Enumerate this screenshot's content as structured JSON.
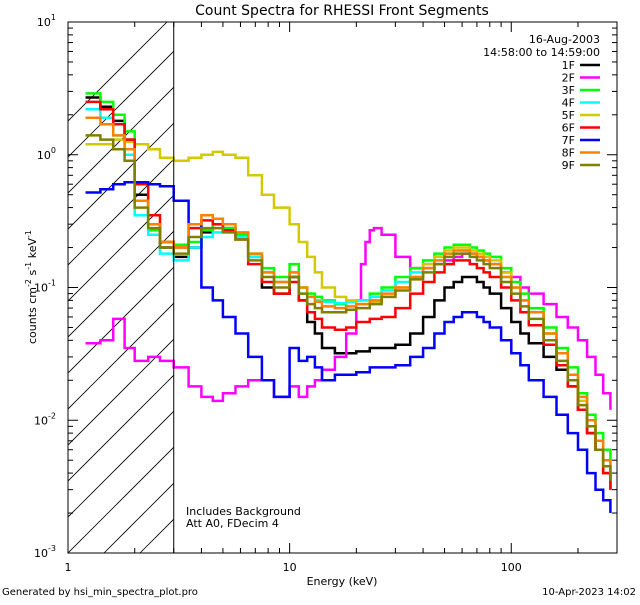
{
  "chart_data": {
    "type": "line",
    "title": "Count Spectra for RHESSI Front Segments",
    "xlabel": "Energy (keV)",
    "ylabel_parts": [
      "counts cm",
      "-2",
      " s",
      "-1",
      " keV",
      "-1"
    ],
    "xscale": "log",
    "yscale": "log",
    "xlim": [
      1,
      300
    ],
    "ylim": [
      0.001,
      10
    ],
    "x_ticks": [
      {
        "value": 1,
        "label": "1"
      },
      {
        "value": 10,
        "label": "10"
      },
      {
        "value": 100,
        "label": "100"
      }
    ],
    "y_ticks": [
      {
        "value": 0.001,
        "base": "10",
        "exp": "-3"
      },
      {
        "value": 0.01,
        "base": "10",
        "exp": "-2"
      },
      {
        "value": 0.1,
        "base": "10",
        "exp": "-1"
      },
      {
        "value": 1,
        "base": "10",
        "exp": "0"
      },
      {
        "value": 10,
        "base": "10",
        "exp": "1"
      }
    ],
    "date": "16-Aug-2003",
    "time_range": "14:58:00 to 14:59:00",
    "hatched_region_x": [
      1,
      3
    ],
    "annotation_lines": [
      "Includes Background",
      "Att A0, FDecim 4"
    ],
    "legend_position": "top-right",
    "series": [
      {
        "name": "1F",
        "color": "#000000",
        "x": [
          1.2,
          1.4,
          1.6,
          1.8,
          2.0,
          2.3,
          2.6,
          3.0,
          3.5,
          4.0,
          4.5,
          5.0,
          5.7,
          6.5,
          7.5,
          8.5,
          10,
          11,
          12,
          13,
          14,
          16,
          18,
          20,
          23,
          26,
          30,
          35,
          40,
          45,
          50,
          55,
          60,
          65,
          70,
          75,
          80,
          90,
          100,
          110,
          120,
          140,
          160,
          180,
          200,
          220,
          240,
          260,
          280
        ],
        "y": [
          2.7,
          2.3,
          1.8,
          1.3,
          0.5,
          0.3,
          0.2,
          0.17,
          0.2,
          0.26,
          0.3,
          0.28,
          0.25,
          0.17,
          0.1,
          0.09,
          0.12,
          0.08,
          0.055,
          0.045,
          0.035,
          0.032,
          0.032,
          0.033,
          0.035,
          0.035,
          0.037,
          0.045,
          0.06,
          0.08,
          0.1,
          0.11,
          0.12,
          0.12,
          0.11,
          0.1,
          0.09,
          0.07,
          0.055,
          0.045,
          0.038,
          0.03,
          0.024,
          0.018,
          0.012,
          0.008,
          0.006,
          0.004,
          0.003
        ]
      },
      {
        "name": "2F",
        "color": "#ff00ff",
        "x": [
          1.2,
          1.4,
          1.6,
          1.8,
          2.0,
          2.3,
          2.6,
          3.0,
          3.5,
          4.0,
          4.5,
          5.0,
          5.7,
          6.5,
          7.5,
          8.5,
          10,
          11,
          12,
          13,
          14,
          16,
          18,
          20,
          21,
          22,
          23,
          24,
          26,
          30,
          35,
          40,
          45,
          50,
          55,
          60,
          65,
          70,
          75,
          80,
          90,
          100,
          110,
          120,
          140,
          160,
          180,
          200,
          220,
          240,
          260,
          280
        ],
        "y": [
          0.038,
          0.04,
          0.058,
          0.035,
          0.028,
          0.03,
          0.028,
          0.025,
          0.018,
          0.015,
          0.014,
          0.016,
          0.018,
          0.02,
          0.02,
          0.015,
          0.018,
          0.015,
          0.018,
          0.02,
          0.024,
          0.03,
          0.045,
          0.08,
          0.15,
          0.22,
          0.27,
          0.28,
          0.25,
          0.17,
          0.14,
          0.14,
          0.15,
          0.16,
          0.17,
          0.18,
          0.18,
          0.17,
          0.16,
          0.15,
          0.13,
          0.12,
          0.1,
          0.09,
          0.075,
          0.06,
          0.05,
          0.04,
          0.03,
          0.022,
          0.016,
          0.012
        ]
      },
      {
        "name": "3F",
        "color": "#00ff00",
        "x": [
          1.2,
          1.4,
          1.6,
          1.8,
          2.0,
          2.3,
          2.6,
          3.0,
          3.5,
          4.0,
          4.5,
          5.0,
          5.7,
          6.5,
          7.5,
          8.5,
          10,
          11,
          12,
          13,
          14,
          16,
          18,
          20,
          23,
          26,
          30,
          35,
          40,
          45,
          50,
          55,
          60,
          65,
          70,
          75,
          80,
          90,
          100,
          110,
          120,
          140,
          160,
          180,
          200,
          220,
          240,
          260,
          280
        ],
        "y": [
          2.9,
          2.5,
          2.0,
          1.5,
          0.45,
          0.27,
          0.22,
          0.21,
          0.22,
          0.27,
          0.3,
          0.28,
          0.25,
          0.18,
          0.14,
          0.12,
          0.15,
          0.1,
          0.09,
          0.085,
          0.08,
          0.075,
          0.078,
          0.08,
          0.09,
          0.1,
          0.12,
          0.14,
          0.16,
          0.18,
          0.2,
          0.21,
          0.21,
          0.2,
          0.19,
          0.18,
          0.17,
          0.14,
          0.11,
          0.09,
          0.07,
          0.05,
          0.035,
          0.025,
          0.016,
          0.011,
          0.008,
          0.006,
          0.005
        ]
      },
      {
        "name": "4F",
        "color": "#00ffff",
        "x": [
          1.2,
          1.4,
          1.6,
          1.8,
          2.0,
          2.3,
          2.6,
          3.0,
          3.5,
          4.0,
          4.5,
          5.0,
          5.7,
          6.5,
          7.5,
          8.5,
          10,
          11,
          12,
          13,
          14,
          16,
          18,
          20,
          23,
          26,
          30,
          35,
          40,
          45,
          50,
          55,
          60,
          65,
          70,
          75,
          80,
          90,
          100,
          110,
          120,
          140,
          160,
          180,
          200,
          220,
          240,
          260,
          280
        ],
        "y": [
          2.2,
          1.9,
          1.4,
          1.0,
          0.35,
          0.25,
          0.18,
          0.16,
          0.2,
          0.24,
          0.26,
          0.26,
          0.24,
          0.17,
          0.13,
          0.11,
          0.13,
          0.09,
          0.085,
          0.08,
          0.078,
          0.076,
          0.078,
          0.08,
          0.085,
          0.095,
          0.11,
          0.13,
          0.15,
          0.17,
          0.18,
          0.19,
          0.19,
          0.18,
          0.17,
          0.16,
          0.15,
          0.12,
          0.1,
          0.08,
          0.065,
          0.045,
          0.032,
          0.022,
          0.015,
          0.01,
          0.007,
          0.005,
          0.004
        ]
      },
      {
        "name": "5F",
        "color": "#d4c800",
        "x": [
          1.2,
          1.4,
          1.6,
          1.8,
          2.0,
          2.3,
          2.6,
          3.0,
          3.5,
          4.0,
          4.5,
          5.0,
          5.7,
          6.5,
          7.5,
          8.5,
          10,
          11,
          12,
          13,
          14,
          16,
          18,
          20,
          23,
          26,
          30,
          35,
          40,
          45,
          50,
          55,
          60,
          65,
          70,
          75,
          80,
          90,
          100,
          110,
          120,
          140,
          160,
          180,
          200,
          220,
          240,
          260,
          280
        ],
        "y": [
          1.2,
          1.2,
          1.3,
          1.25,
          1.2,
          1.1,
          0.95,
          0.9,
          0.95,
          1.0,
          1.05,
          1.0,
          0.95,
          0.7,
          0.5,
          0.4,
          0.3,
          0.22,
          0.17,
          0.13,
          0.1,
          0.085,
          0.08,
          0.075,
          0.078,
          0.085,
          0.1,
          0.12,
          0.15,
          0.17,
          0.19,
          0.2,
          0.2,
          0.19,
          0.18,
          0.17,
          0.16,
          0.13,
          0.1,
          0.08,
          0.065,
          0.045,
          0.032,
          0.022,
          0.014,
          0.009,
          0.006,
          0.004,
          0.003
        ]
      },
      {
        "name": "6F",
        "color": "#ff0000",
        "x": [
          1.2,
          1.4,
          1.6,
          1.8,
          2.0,
          2.3,
          2.6,
          3.0,
          3.5,
          4.0,
          4.5,
          5.0,
          5.7,
          6.5,
          7.5,
          8.5,
          10,
          11,
          12,
          13,
          14,
          16,
          18,
          20,
          23,
          26,
          30,
          35,
          40,
          45,
          50,
          55,
          60,
          65,
          70,
          75,
          80,
          90,
          100,
          110,
          120,
          140,
          160,
          180,
          200,
          220,
          240,
          260,
          280
        ],
        "y": [
          2.5,
          2.2,
          1.7,
          1.3,
          0.6,
          0.35,
          0.22,
          0.2,
          0.28,
          0.32,
          0.3,
          0.27,
          0.23,
          0.15,
          0.11,
          0.09,
          0.11,
          0.08,
          0.065,
          0.058,
          0.05,
          0.048,
          0.05,
          0.055,
          0.058,
          0.06,
          0.07,
          0.09,
          0.11,
          0.13,
          0.15,
          0.16,
          0.16,
          0.15,
          0.14,
          0.13,
          0.12,
          0.1,
          0.08,
          0.065,
          0.052,
          0.037,
          0.026,
          0.018,
          0.012,
          0.008,
          0.006,
          0.004,
          0.003
        ]
      },
      {
        "name": "7F",
        "color": "#0000ff",
        "x": [
          1.2,
          1.4,
          1.6,
          1.8,
          2.0,
          2.3,
          2.6,
          3.0,
          3.5,
          4.0,
          4.5,
          5.0,
          5.7,
          6.5,
          7.5,
          8.5,
          10,
          11,
          12,
          13,
          14,
          16,
          18,
          20,
          23,
          26,
          30,
          35,
          40,
          45,
          50,
          55,
          60,
          65,
          70,
          75,
          80,
          90,
          100,
          110,
          120,
          140,
          160,
          180,
          200,
          220,
          240,
          260,
          280
        ],
        "y": [
          0.52,
          0.55,
          0.6,
          0.62,
          0.62,
          0.6,
          0.58,
          0.45,
          0.3,
          0.1,
          0.08,
          0.06,
          0.045,
          0.03,
          0.02,
          0.015,
          0.035,
          0.028,
          0.03,
          0.025,
          0.02,
          0.022,
          0.022,
          0.023,
          0.025,
          0.025,
          0.026,
          0.03,
          0.035,
          0.045,
          0.055,
          0.06,
          0.065,
          0.065,
          0.06,
          0.055,
          0.05,
          0.04,
          0.032,
          0.026,
          0.02,
          0.015,
          0.011,
          0.008,
          0.006,
          0.004,
          0.003,
          0.0025,
          0.002
        ]
      },
      {
        "name": "8F",
        "color": "#ff8000",
        "x": [
          1.2,
          1.4,
          1.6,
          1.8,
          2.0,
          2.3,
          2.6,
          3.0,
          3.5,
          4.0,
          4.5,
          5.0,
          5.7,
          6.5,
          7.5,
          8.5,
          10,
          11,
          12,
          13,
          14,
          16,
          18,
          20,
          23,
          26,
          30,
          35,
          40,
          45,
          50,
          55,
          60,
          65,
          70,
          75,
          80,
          90,
          100,
          110,
          120,
          140,
          160,
          180,
          200,
          220,
          240,
          260,
          280
        ],
        "y": [
          1.9,
          1.7,
          1.4,
          1.1,
          0.45,
          0.3,
          0.22,
          0.2,
          0.3,
          0.35,
          0.33,
          0.3,
          0.26,
          0.18,
          0.13,
          0.11,
          0.13,
          0.1,
          0.085,
          0.078,
          0.072,
          0.07,
          0.072,
          0.075,
          0.08,
          0.09,
          0.1,
          0.12,
          0.14,
          0.16,
          0.18,
          0.19,
          0.19,
          0.18,
          0.17,
          0.16,
          0.15,
          0.12,
          0.1,
          0.08,
          0.065,
          0.045,
          0.032,
          0.022,
          0.015,
          0.01,
          0.007,
          0.005,
          0.004
        ]
      },
      {
        "name": "9F",
        "color": "#808000",
        "x": [
          1.2,
          1.4,
          1.6,
          1.8,
          2.0,
          2.3,
          2.6,
          3.0,
          3.5,
          4.0,
          4.5,
          5.0,
          5.7,
          6.5,
          7.5,
          8.5,
          10,
          11,
          12,
          13,
          14,
          16,
          18,
          20,
          23,
          26,
          30,
          35,
          40,
          45,
          50,
          55,
          60,
          65,
          70,
          75,
          80,
          90,
          100,
          110,
          120,
          140,
          160,
          180,
          200,
          220,
          240,
          260,
          280
        ],
        "y": [
          1.4,
          1.3,
          1.1,
          0.9,
          0.4,
          0.28,
          0.2,
          0.18,
          0.24,
          0.28,
          0.28,
          0.26,
          0.23,
          0.16,
          0.12,
          0.1,
          0.12,
          0.09,
          0.075,
          0.07,
          0.065,
          0.065,
          0.068,
          0.07,
          0.075,
          0.085,
          0.095,
          0.115,
          0.13,
          0.15,
          0.17,
          0.18,
          0.18,
          0.17,
          0.16,
          0.15,
          0.14,
          0.11,
          0.09,
          0.072,
          0.058,
          0.04,
          0.028,
          0.02,
          0.013,
          0.009,
          0.006,
          0.0045,
          0.0035
        ]
      }
    ]
  },
  "footer": {
    "left": "Generated by hsi_min_spectra_plot.pro",
    "right": "10-Apr-2023 14:02"
  }
}
